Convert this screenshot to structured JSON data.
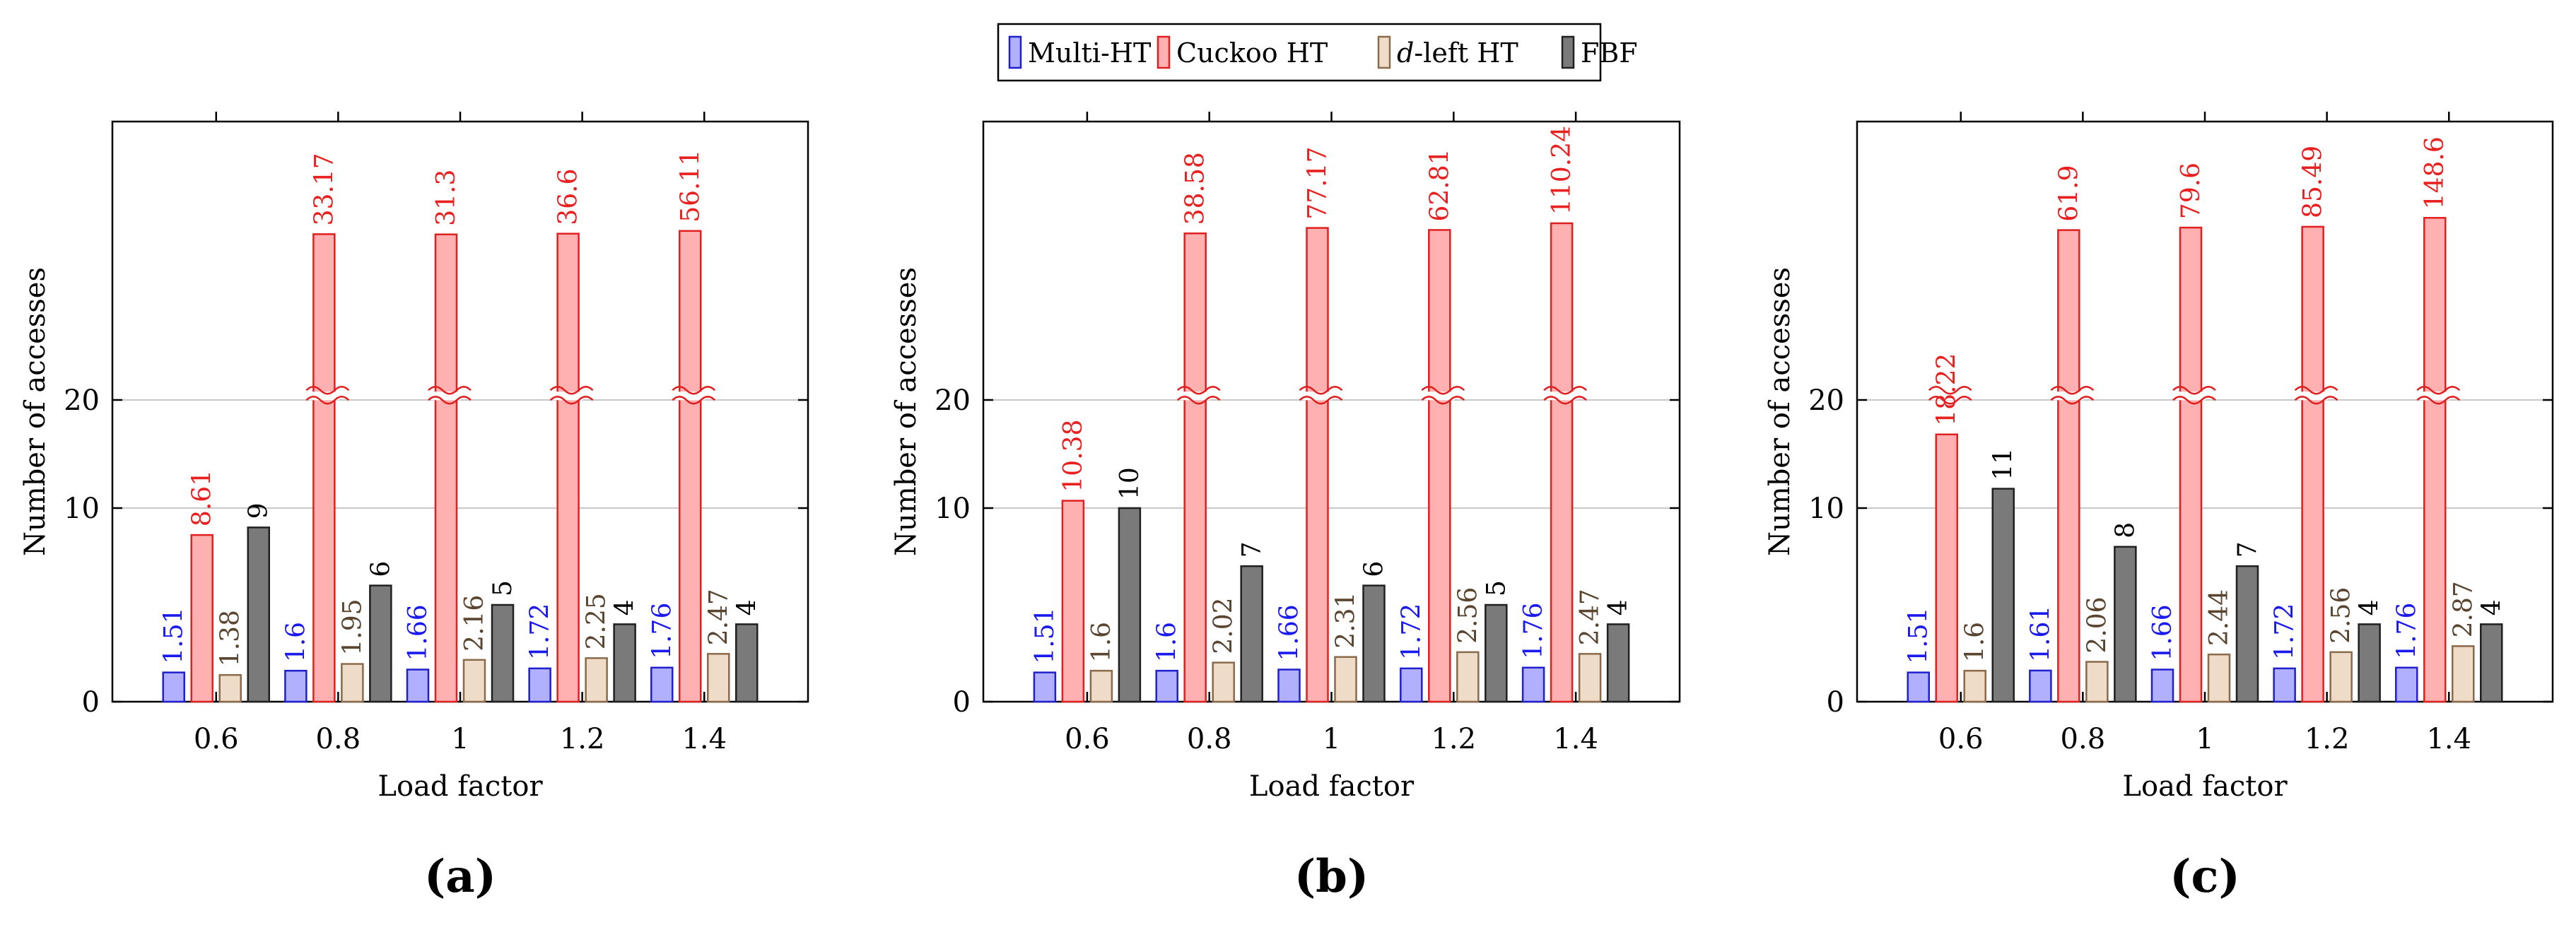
{
  "legend": {
    "items": [
      {
        "name": "Multi-HT",
        "label": "Multi-HT",
        "fill": "#b0b0ff",
        "stroke": "#2020cc"
      },
      {
        "name": "Cuckoo HT",
        "label": "Cuckoo HT",
        "fill": "#ffb0b0",
        "stroke": "#e02020"
      },
      {
        "name": "d-left HT",
        "label_italic": "d",
        "label_rest": "-left HT",
        "fill": "#eedcc8",
        "stroke": "#8a6a4a"
      },
      {
        "name": "FBF",
        "label": "FBF",
        "fill": "#7a7a7a",
        "stroke": "#202020"
      }
    ]
  },
  "colors": {
    "label_multi": "#1a1aee",
    "label_cuckoo": "#e82020",
    "label_dleft": "#5a4630",
    "label_fbf": "#000000",
    "grid": "#c8c8c8",
    "axis": "#000000"
  },
  "chart_data": [
    {
      "type": "bar",
      "panel_label": "(a)",
      "categories": [
        "0.6",
        "0.8",
        "1",
        "1.2",
        "1.4"
      ],
      "xlabel": "Load factor",
      "ylabel": "Number of accesses",
      "ylim": [
        0,
        30
      ],
      "yticks": [
        "0",
        "10",
        "20"
      ],
      "axis_break": [
        16,
        20
      ],
      "grid": true,
      "series": [
        {
          "name": "Multi-HT",
          "values": [
            1.51,
            1.6,
            1.66,
            1.72,
            1.76
          ],
          "labels": [
            "1.51",
            "1.6",
            "1.66",
            "1.72",
            "1.76"
          ]
        },
        {
          "name": "Cuckoo HT",
          "values": [
            8.61,
            33.17,
            31.3,
            36.6,
            56.11
          ],
          "labels": [
            "8.61",
            "33.17",
            "31.3",
            "36.6",
            "56.11"
          ]
        },
        {
          "name": "d-left HT",
          "values": [
            1.38,
            1.95,
            2.16,
            2.25,
            2.47
          ],
          "labels": [
            "1.38",
            "1.95",
            "2.16",
            "2.25",
            "2.47"
          ]
        },
        {
          "name": "FBF",
          "values": [
            9,
            6,
            5,
            4,
            4
          ],
          "labels": [
            "9",
            "6",
            "5",
            "4",
            "4"
          ]
        }
      ]
    },
    {
      "type": "bar",
      "panel_label": "(b)",
      "categories": [
        "0.6",
        "0.8",
        "1",
        "1.2",
        "1.4"
      ],
      "xlabel": "Load factor",
      "ylabel": "Number of accesses",
      "ylim": [
        0,
        30
      ],
      "yticks": [
        "0",
        "10",
        "20"
      ],
      "axis_break": [
        16,
        20
      ],
      "grid": true,
      "series": [
        {
          "name": "Multi-HT",
          "values": [
            1.51,
            1.6,
            1.66,
            1.72,
            1.76
          ],
          "labels": [
            "1.51",
            "1.6",
            "1.66",
            "1.72",
            "1.76"
          ]
        },
        {
          "name": "Cuckoo HT",
          "values": [
            10.38,
            38.58,
            77.17,
            62.81,
            110.24
          ],
          "labels": [
            "10.38",
            "38.58",
            "77.17",
            "62.81",
            "110.24"
          ]
        },
        {
          "name": "d-left HT",
          "values": [
            1.6,
            2.02,
            2.31,
            2.56,
            2.47
          ],
          "labels": [
            "1.6",
            "2.02",
            "2.31",
            "2.56",
            "2.47"
          ]
        },
        {
          "name": "FBF",
          "values": [
            10,
            7,
            6,
            5,
            4
          ],
          "labels": [
            "10",
            "7",
            "6",
            "5",
            "4"
          ]
        }
      ]
    },
    {
      "type": "bar",
      "panel_label": "(c)",
      "categories": [
        "0.6",
        "0.8",
        "1",
        "1.2",
        "1.4"
      ],
      "xlabel": "Load factor",
      "ylabel": "Number of accesses",
      "ylim": [
        0,
        30
      ],
      "yticks": [
        "0",
        "10",
        "20"
      ],
      "axis_break": [
        16,
        20
      ],
      "grid": true,
      "series": [
        {
          "name": "Multi-HT",
          "values": [
            1.51,
            1.61,
            1.66,
            1.72,
            1.76
          ],
          "labels": [
            "1.51",
            "1.61",
            "1.66",
            "1.72",
            "1.76"
          ]
        },
        {
          "name": "Cuckoo HT",
          "values": [
            18.22,
            61.9,
            79.6,
            85.49,
            148.6
          ],
          "labels": [
            "18.22",
            "61.9",
            "79.6",
            "85.49",
            "148.6"
          ]
        },
        {
          "name": "d-left HT",
          "values": [
            1.6,
            2.06,
            2.44,
            2.56,
            2.87
          ],
          "labels": [
            "1.6",
            "2.06",
            "2.44",
            "2.56",
            "2.87"
          ]
        },
        {
          "name": "FBF",
          "values": [
            11,
            8,
            7,
            4,
            4
          ],
          "labels": [
            "11",
            "8",
            "7",
            "4",
            "4"
          ]
        }
      ]
    }
  ]
}
